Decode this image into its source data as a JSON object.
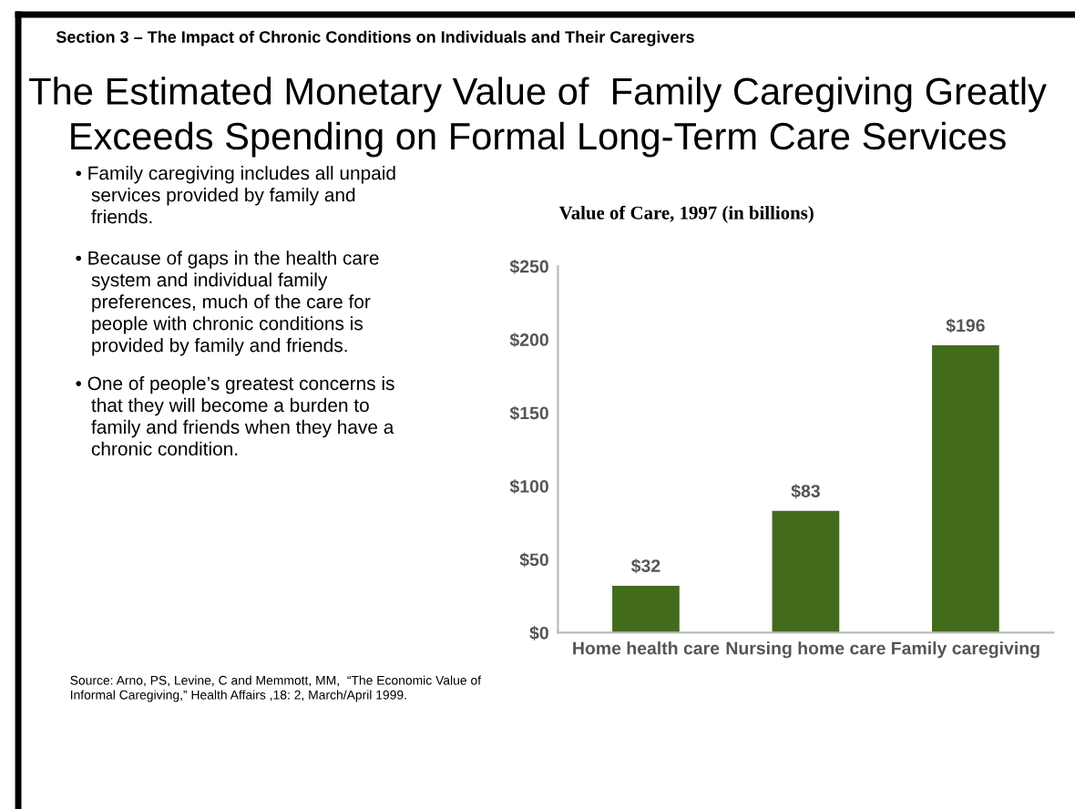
{
  "chart_data": {
    "type": "bar",
    "title": "The Estimated Monetary Value of  Family Caregiving Greatly\nExceeds Spending on Formal Long-Term Care Services",
    "subtitle": "Value of Care, 1997 (in billions)",
    "annotations": [
      "Section 3 – The Impact of Chronic Conditions on Individuals and Their Caregivers",
      "• Family caregiving includes all unpaid\n   services provided by family and\n   friends.",
      "• Because of gaps in the health care\n   system and individual family\n   preferences, much of the care for\n   people with chronic conditions is\n   provided by family and friends.",
      "• One of people’s greatest concerns is\n   that they will become a burden to\n   family and friends when they have a\n   chronic condition.",
      "Source: Arno, PS, Levine, C and Memmott, MM,  “The Economic Value of\nInformal Caregiving,” Health Affairs ,18: 2, March/April 1999."
    ],
    "categories": [
      "Home health care",
      "Nursing home care",
      "Family caregiving"
    ],
    "values": [
      32,
      83,
      196
    ],
    "value_labels": [
      "$32",
      "$83",
      "$196"
    ],
    "color": "#426b1c",
    "ylim": [
      0,
      250
    ],
    "yticks": [
      {
        "value": 0,
        "label": "$0"
      },
      {
        "value": 50,
        "label": "$50"
      },
      {
        "value": 100,
        "label": "$100"
      },
      {
        "value": 150,
        "label": "$150"
      },
      {
        "value": 200,
        "label": "$200"
      },
      {
        "value": 250,
        "label": "$250"
      }
    ],
    "grid": false,
    "legend": false
  }
}
